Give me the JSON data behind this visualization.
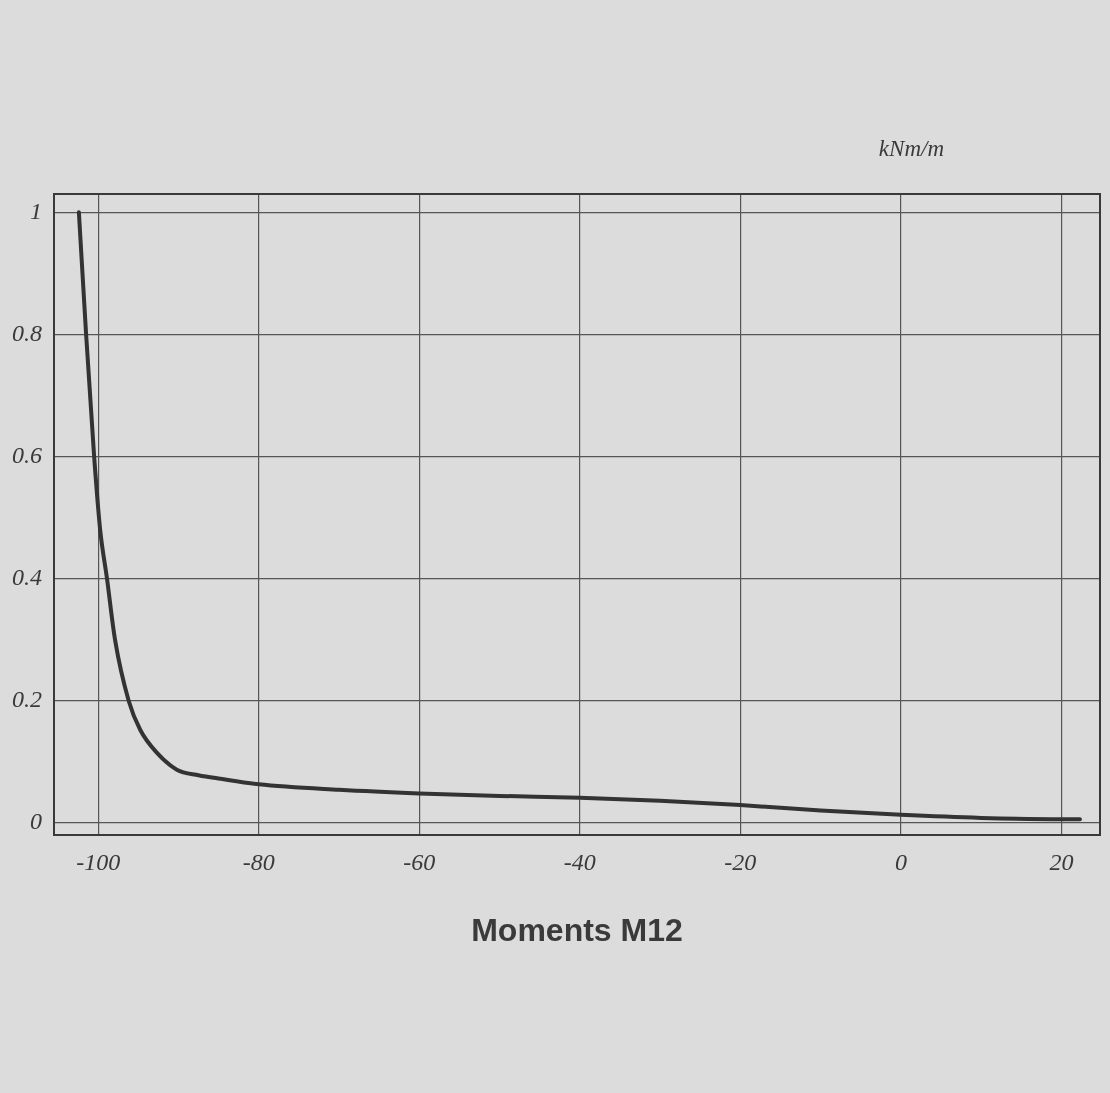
{
  "chart_data": {
    "type": "line",
    "title": "Moments M12",
    "xlabel": "kNm/m",
    "x": [
      -102.4,
      -101.5,
      -100.5,
      -99.75,
      -98.9,
      -97.9,
      -96.2,
      -94.75,
      -92.7,
      -90.2,
      -87.5,
      -84.75,
      -80,
      -70,
      -60,
      -50,
      -40,
      -30,
      -20,
      -10,
      0,
      10,
      20,
      22.3
    ],
    "values": [
      1.0,
      0.8,
      0.6,
      0.48,
      0.4,
      0.3,
      0.2,
      0.152,
      0.115,
      0.087,
      0.078,
      0.072,
      0.063,
      0.054,
      0.048,
      0.044,
      0.041,
      0.036,
      0.029,
      0.02,
      0.013,
      0.008,
      0.006,
      0.006
    ],
    "color": "#333333",
    "xlim": [
      -105.5,
      24.8
    ],
    "xticks": [
      -100,
      -80,
      -60,
      -40,
      -20,
      0,
      20
    ],
    "ylim": [
      -0.02,
      1.03
    ],
    "yticks": [
      0,
      0.2,
      0.4,
      0.6,
      0.8,
      1
    ],
    "grid": true,
    "line_style": "solid"
  }
}
